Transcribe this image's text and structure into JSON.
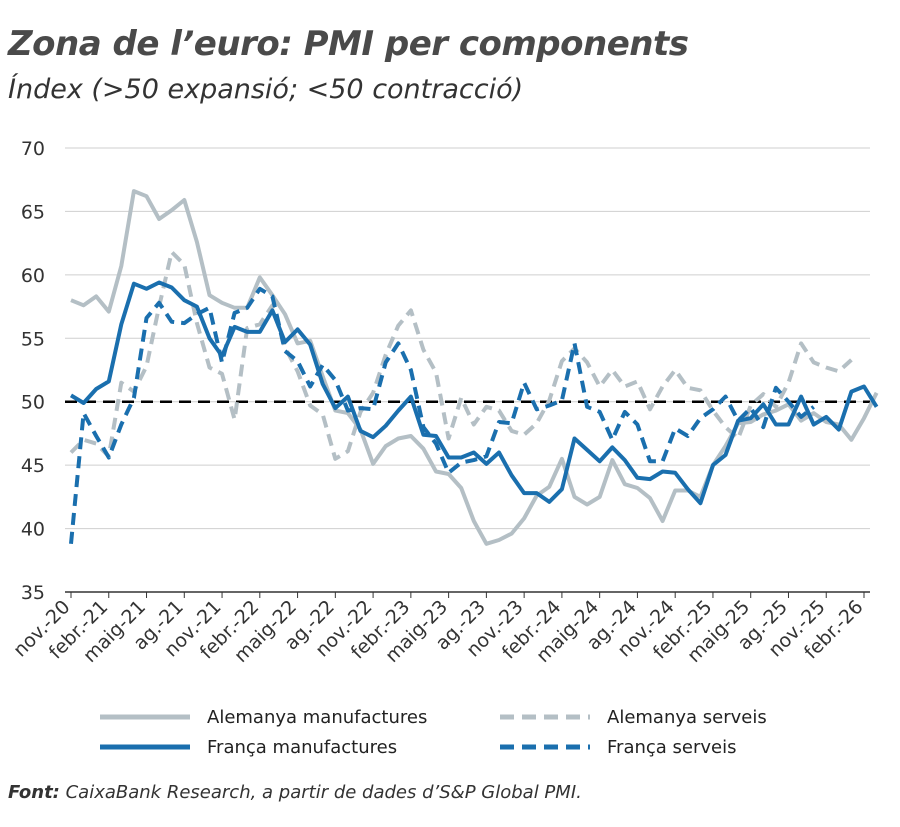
{
  "title": "Zona de l’euro: PMI per components",
  "subtitle": "Índex (>50 expansió; <50 contracció)",
  "source": {
    "label": "Font:",
    "text": " CaixaBank Research, a partir de dades d’S&P Global PMI."
  },
  "colors": {
    "de_mfg": "#b4bfc5",
    "de_srv": "#b4bfc5",
    "fr_mfg": "#1a6fae",
    "fr_srv": "#1a6fae",
    "reference": "#000000",
    "grid": "#cfcfcf"
  },
  "chart_data": {
    "type": "line",
    "ylim": [
      35,
      70
    ],
    "yticks": [
      35,
      40,
      45,
      50,
      55,
      60,
      65,
      70
    ],
    "xlabels": [
      "nov.-20",
      "febr.-21",
      "maig-21",
      "ag.-21",
      "nov.-21",
      "febr.-22",
      "maig-22",
      "ag.-22",
      "nov.-22",
      "febr.-23",
      "maig-23",
      "ag.-23",
      "nov.-23",
      "febr.-24",
      "maig-24",
      "ag.-24",
      "nov.-24",
      "febr.-25",
      "maig-25",
      "ag.-25",
      "nov.-25",
      "febr.-26"
    ],
    "reference_line": 50,
    "grid": true,
    "legend_position": "bottom",
    "series": [
      {
        "name": "Alemanya manufactures",
        "style": "solid",
        "values": [
          58.0,
          57.6,
          58.3,
          57.1,
          60.7,
          66.6,
          66.2,
          64.4,
          65.1,
          65.9,
          62.6,
          58.4,
          57.8,
          57.4,
          57.4,
          59.8,
          58.4,
          56.9,
          54.6,
          54.8,
          52.0,
          49.3,
          49.1,
          47.8,
          45.1,
          46.5,
          47.1,
          47.3,
          46.3,
          44.5,
          44.3,
          43.2,
          40.6,
          38.8,
          39.1,
          39.6,
          40.8,
          42.6,
          43.3,
          45.5,
          42.5,
          41.9,
          42.5,
          45.4,
          43.5,
          43.2,
          42.4,
          40.6,
          43.0,
          43.0,
          42.5,
          45.0,
          46.5,
          48.3,
          48.4,
          49.0,
          49.3,
          49.8,
          48.5,
          49.1,
          48.4,
          48.2,
          47.0,
          48.7,
          50.7
        ]
      },
      {
        "name": "Alemanya serveis",
        "style": "dashed",
        "values": [
          46.0,
          47.0,
          46.7,
          45.7,
          51.5,
          50.8,
          52.8,
          57.5,
          61.8,
          60.8,
          56.2,
          52.7,
          52.2,
          48.6,
          55.8,
          56.1,
          57.6,
          54.3,
          52.4,
          49.7,
          49.0,
          45.5,
          46.1,
          49.2,
          50.7,
          53.7,
          56.0,
          57.2,
          54.1,
          52.3,
          47.1,
          50.3,
          48.2,
          49.6,
          49.3,
          47.7,
          47.4,
          48.3,
          50.1,
          53.2,
          54.2,
          53.1,
          51.2,
          52.5,
          51.2,
          51.6,
          49.4,
          51.2,
          52.5,
          51.1,
          50.9,
          49.3,
          48.0,
          47.1,
          49.7,
          50.6,
          49.6,
          51.5,
          54.6,
          53.1,
          52.7,
          52.4,
          53.3
        ]
      },
      {
        "name": "França manufactures",
        "style": "solid",
        "values": [
          50.5,
          49.9,
          51.0,
          51.6,
          56.1,
          59.3,
          58.9,
          59.4,
          59.0,
          58.0,
          57.5,
          55.0,
          53.6,
          55.9,
          55.5,
          55.5,
          57.2,
          54.7,
          55.7,
          54.5,
          51.4,
          49.5,
          50.4,
          47.7,
          47.2,
          48.1,
          49.3,
          50.4,
          47.4,
          47.3,
          45.6,
          45.6,
          46.0,
          45.1,
          46.0,
          44.2,
          42.8,
          42.8,
          42.1,
          43.1,
          47.1,
          46.2,
          45.3,
          46.4,
          45.4,
          44.0,
          43.9,
          44.5,
          44.4,
          43.1,
          42.0,
          45.0,
          45.8,
          48.5,
          48.7,
          49.8,
          48.2,
          48.2,
          50.4,
          48.2,
          48.8,
          47.8,
          50.8,
          51.2,
          49.6
        ]
      },
      {
        "name": "França serveis",
        "style": "dashed",
        "values": [
          38.8,
          49.1,
          47.3,
          45.6,
          48.2,
          50.3,
          56.6,
          57.8,
          56.3,
          56.2,
          56.9,
          57.4,
          53.1,
          57.0,
          57.4,
          58.9,
          58.3,
          54.0,
          53.2,
          51.2,
          52.9,
          51.7,
          49.3,
          49.5,
          49.4,
          53.1,
          54.6,
          52.5,
          48.0,
          46.7,
          44.4,
          45.2,
          45.4,
          45.7,
          48.4,
          48.3,
          51.5,
          49.4,
          49.7,
          50.1,
          54.6,
          49.6,
          49.2,
          47.0,
          49.2,
          48.2,
          45.3,
          45.3,
          47.9,
          47.3,
          48.7,
          49.4,
          50.4,
          48.5,
          49.5,
          48.0,
          51.1,
          50.0,
          48.8,
          49.6
        ]
      }
    ]
  }
}
